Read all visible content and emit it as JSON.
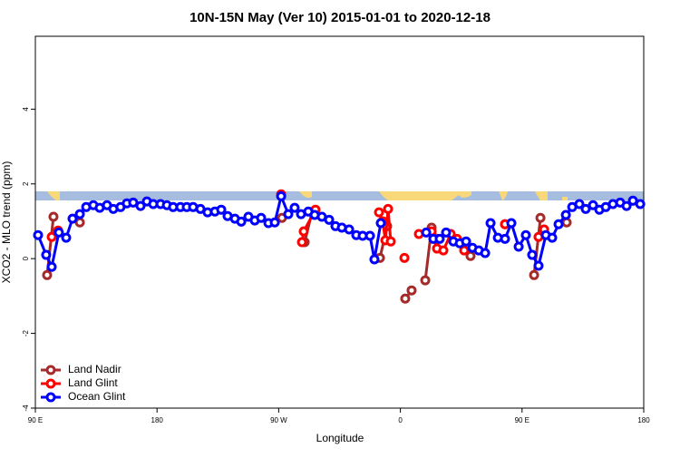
{
  "chart_data": {
    "type": "line",
    "title": "10N-15N May (Ver 10)   2015-01-01 to 2020-12-18",
    "x_label": "Longitude",
    "y_label": "XCO2 - MLO trend (ppm)",
    "xlim": [
      90,
      540
    ],
    "ylim": [
      -4,
      5.95
    ],
    "xticks": [
      {
        "value": 90,
        "label": "90 E"
      },
      180,
      {
        "value": 270,
        "label": "90 W"
      },
      {
        "value": 360,
        "label": "0"
      },
      {
        "value": 450,
        "label": "90 E"
      },
      {
        "value": 540,
        "label": "180"
      }
    ],
    "yticks": [
      -4,
      -2,
      0,
      2,
      4
    ],
    "legend": "bottomleft",
    "series": [
      {
        "name": "Land Nadir",
        "color": "#a52a2a",
        "x": [
          98.7,
          103.4,
          null,
          122.9,
          null,
          272.4,
          null,
          289.2,
          294.6,
          null,
          344.9,
          350.2,
          null,
          363.6,
          368.3,
          null,
          378.4,
          383.1,
          387.8,
          null,
          411.9,
          null,
          437.4,
          null,
          458.9,
          463.6,
          null,
          483.0
        ],
        "values": [
          -0.44,
          1.12,
          null,
          0.97,
          null,
          1.09,
          null,
          0.44,
          1.24,
          null,
          0.02,
          0.87,
          null,
          -1.07,
          -0.85,
          null,
          -0.58,
          0.83,
          0.53,
          null,
          0.07,
          null,
          0.92,
          null,
          -0.44,
          1.09,
          null,
          0.97
        ]
      },
      {
        "name": "Land Glint",
        "color": "#ff0000",
        "x": [
          102.1,
          106.8,
          null,
          271.8,
          null,
          287.2,
          288.5,
          297.2,
          null,
          344.2,
          346.9,
          348.9,
          350.9,
          352.9,
          null,
          363.0,
          null,
          373.7,
          null,
          383.1,
          387.1,
          391.8,
          397.2,
          401.9,
          407.2,
          null,
          437.4,
          null,
          462.2,
          466.3
        ],
        "values": [
          0.58,
          0.75,
          null,
          1.72,
          null,
          0.44,
          0.73,
          1.31,
          null,
          1.24,
          1.0,
          0.49,
          1.33,
          0.46,
          null,
          0.02,
          null,
          0.66,
          null,
          0.73,
          0.27,
          0.22,
          0.66,
          0.53,
          0.22,
          null,
          0.92,
          null,
          0.58,
          0.78
        ]
      },
      {
        "name": "Ocean Glint",
        "color": "#0000ff",
        "x": [
          92.0,
          98.0,
          102.1,
          107.4,
          112.8,
          117.5,
          122.9,
          127.6,
          132.9,
          137.6,
          143.0,
          147.7,
          153.0,
          157.7,
          162.4,
          167.8,
          172.5,
          177.2,
          182.6,
          187.3,
          191.9,
          197.3,
          202.0,
          206.7,
          212.1,
          217.4,
          222.8,
          227.5,
          232.2,
          237.6,
          242.3,
          247.6,
          252.3,
          257.0,
          262.4,
          267.1,
          271.8,
          277.1,
          281.8,
          286.5,
          291.9,
          296.6,
          301.9,
          307.3,
          312.0,
          316.7,
          322.1,
          327.4,
          332.1,
          337.5,
          340.8,
          345.5,
          null,
          379.1,
          384.4,
          389.1,
          393.8,
          399.2,
          403.9,
          408.6,
          413.3,
          418.0,
          422.7,
          426.7,
          432.1,
          437.4,
          442.1,
          447.5,
          452.8,
          457.5,
          462.2,
          467.6,
          472.3,
          477.0,
          482.4,
          487.1,
          492.4,
          497.1,
          502.5,
          507.2,
          511.9,
          517.2,
          522.6,
          527.3,
          532.0,
          537.4
        ],
        "values": [
          0.63,
          0.1,
          -0.22,
          0.7,
          0.56,
          1.07,
          1.19,
          1.38,
          1.43,
          1.36,
          1.43,
          1.33,
          1.38,
          1.48,
          1.5,
          1.41,
          1.53,
          1.46,
          1.46,
          1.43,
          1.38,
          1.38,
          1.38,
          1.38,
          1.33,
          1.24,
          1.26,
          1.31,
          1.14,
          1.07,
          0.99,
          1.12,
          1.02,
          1.09,
          0.95,
          0.97,
          1.67,
          1.19,
          1.36,
          1.19,
          1.26,
          1.17,
          1.12,
          1.04,
          0.87,
          0.83,
          0.78,
          0.63,
          0.61,
          0.61,
          -0.02,
          0.95,
          null,
          0.7,
          0.53,
          0.53,
          0.7,
          0.46,
          0.41,
          0.46,
          0.29,
          0.22,
          0.15,
          0.95,
          0.56,
          0.53,
          0.95,
          0.32,
          0.63,
          0.1,
          -0.19,
          0.63,
          0.56,
          0.92,
          1.17,
          1.38,
          1.46,
          1.33,
          1.43,
          1.31,
          1.38,
          1.46,
          1.5,
          1.41,
          1.55,
          1.46
        ]
      }
    ]
  }
}
